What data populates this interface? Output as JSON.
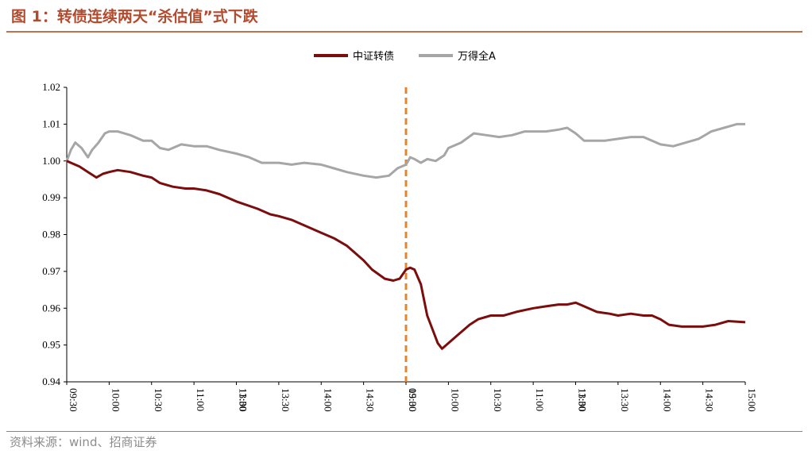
{
  "header": {
    "title": "图 1：转债连续两天“杀估值”式下跌"
  },
  "footer": {
    "source": "资料来源：wind、招商证券"
  },
  "colors": {
    "series_main": "#7b0d0d",
    "series_gray": "#a6a6a6",
    "divider": "#e3852b",
    "accent": "#b24a2e"
  },
  "chart_data": {
    "type": "line",
    "title": "",
    "xlabel": "",
    "ylabel": "",
    "ylim": [
      0.94,
      1.02
    ],
    "yticks": [
      "0.94",
      "0.95",
      "0.96",
      "0.97",
      "0.98",
      "0.99",
      "1.00",
      "1.01",
      "1.02"
    ],
    "xticks": [
      "09:30",
      "10:00",
      "10:30",
      "11:00",
      "13:00",
      "13:30",
      "14:00",
      "14:30",
      "09:30",
      "10:00",
      "10:30",
      "11:00",
      "13:00",
      "13:30",
      "14:00",
      "14:30",
      "15:00"
    ],
    "xtick_overlays": {
      "4": "11:30",
      "8": "15:00",
      "12": "11:30"
    },
    "legend_position": "top-center",
    "grid": false,
    "divider_x": 8,
    "series": [
      {
        "name": "中证转债",
        "color": "#7b0d0d",
        "x": [
          0,
          0.1,
          0.3,
          0.5,
          0.7,
          0.85,
          1,
          1.2,
          1.5,
          1.8,
          2,
          2.2,
          2.5,
          2.8,
          3,
          3.3,
          3.6,
          4,
          4.5,
          4.8,
          5,
          5.3,
          5.6,
          6,
          6.3,
          6.6,
          7,
          7.2,
          7.5,
          7.7,
          7.85,
          8,
          8.1,
          8.2,
          8.35,
          8.5,
          8.65,
          8.75,
          8.85,
          9,
          9.2,
          9.5,
          9.7,
          10,
          10.3,
          10.6,
          11,
          11.3,
          11.6,
          11.8,
          12,
          12.2,
          12.5,
          12.8,
          13,
          13.3,
          13.6,
          13.8,
          14,
          14.2,
          14.5,
          14.8,
          15,
          15.3,
          15.6,
          16
        ],
        "values": [
          1.0,
          0.9995,
          0.9985,
          0.997,
          0.9955,
          0.9965,
          0.997,
          0.9975,
          0.997,
          0.996,
          0.9955,
          0.994,
          0.993,
          0.9925,
          0.9925,
          0.992,
          0.991,
          0.989,
          0.987,
          0.9855,
          0.985,
          0.984,
          0.9825,
          0.9805,
          0.979,
          0.977,
          0.973,
          0.9705,
          0.968,
          0.9675,
          0.968,
          0.9705,
          0.971,
          0.9705,
          0.9665,
          0.958,
          0.9535,
          0.9505,
          0.949,
          0.9505,
          0.9525,
          0.9555,
          0.957,
          0.958,
          0.958,
          0.959,
          0.96,
          0.9605,
          0.961,
          0.961,
          0.9615,
          0.9605,
          0.959,
          0.9585,
          0.958,
          0.9585,
          0.958,
          0.958,
          0.957,
          0.9555,
          0.955,
          0.955,
          0.955,
          0.9555,
          0.9565,
          0.9562
        ]
      },
      {
        "name": "万得全A",
        "color": "#a6a6a6",
        "x": [
          0,
          0.1,
          0.2,
          0.35,
          0.5,
          0.6,
          0.75,
          0.9,
          1,
          1.2,
          1.5,
          1.8,
          2,
          2.2,
          2.4,
          2.7,
          3,
          3.3,
          3.6,
          4,
          4.3,
          4.6,
          5,
          5.3,
          5.6,
          6,
          6.3,
          6.6,
          7,
          7.3,
          7.6,
          7.8,
          8,
          8.1,
          8.2,
          8.35,
          8.5,
          8.7,
          8.9,
          9,
          9.3,
          9.6,
          9.9,
          10.2,
          10.5,
          10.8,
          11,
          11.3,
          11.6,
          11.8,
          12,
          12.2,
          12.4,
          12.7,
          13,
          13.3,
          13.6,
          14,
          14.3,
          14.6,
          14.9,
          15.2,
          15.5,
          15.8,
          16
        ],
        "values": [
          1.0,
          1.003,
          1.005,
          1.0035,
          1.001,
          1.003,
          1.005,
          1.0075,
          1.008,
          1.008,
          1.007,
          1.0055,
          1.0055,
          1.0035,
          1.003,
          1.0045,
          1.004,
          1.004,
          1.003,
          1.002,
          1.001,
          0.9995,
          0.9995,
          0.999,
          0.9995,
          0.999,
          0.998,
          0.997,
          0.996,
          0.9955,
          0.996,
          0.998,
          0.999,
          1.001,
          1.0005,
          0.9995,
          1.0005,
          1.0,
          1.0015,
          1.0035,
          1.005,
          1.0075,
          1.007,
          1.0065,
          1.007,
          1.008,
          1.008,
          1.008,
          1.0085,
          1.009,
          1.0075,
          1.0055,
          1.0055,
          1.0055,
          1.006,
          1.0065,
          1.0065,
          1.0045,
          1.004,
          1.005,
          1.006,
          1.008,
          1.009,
          1.01,
          1.01
        ]
      }
    ]
  }
}
